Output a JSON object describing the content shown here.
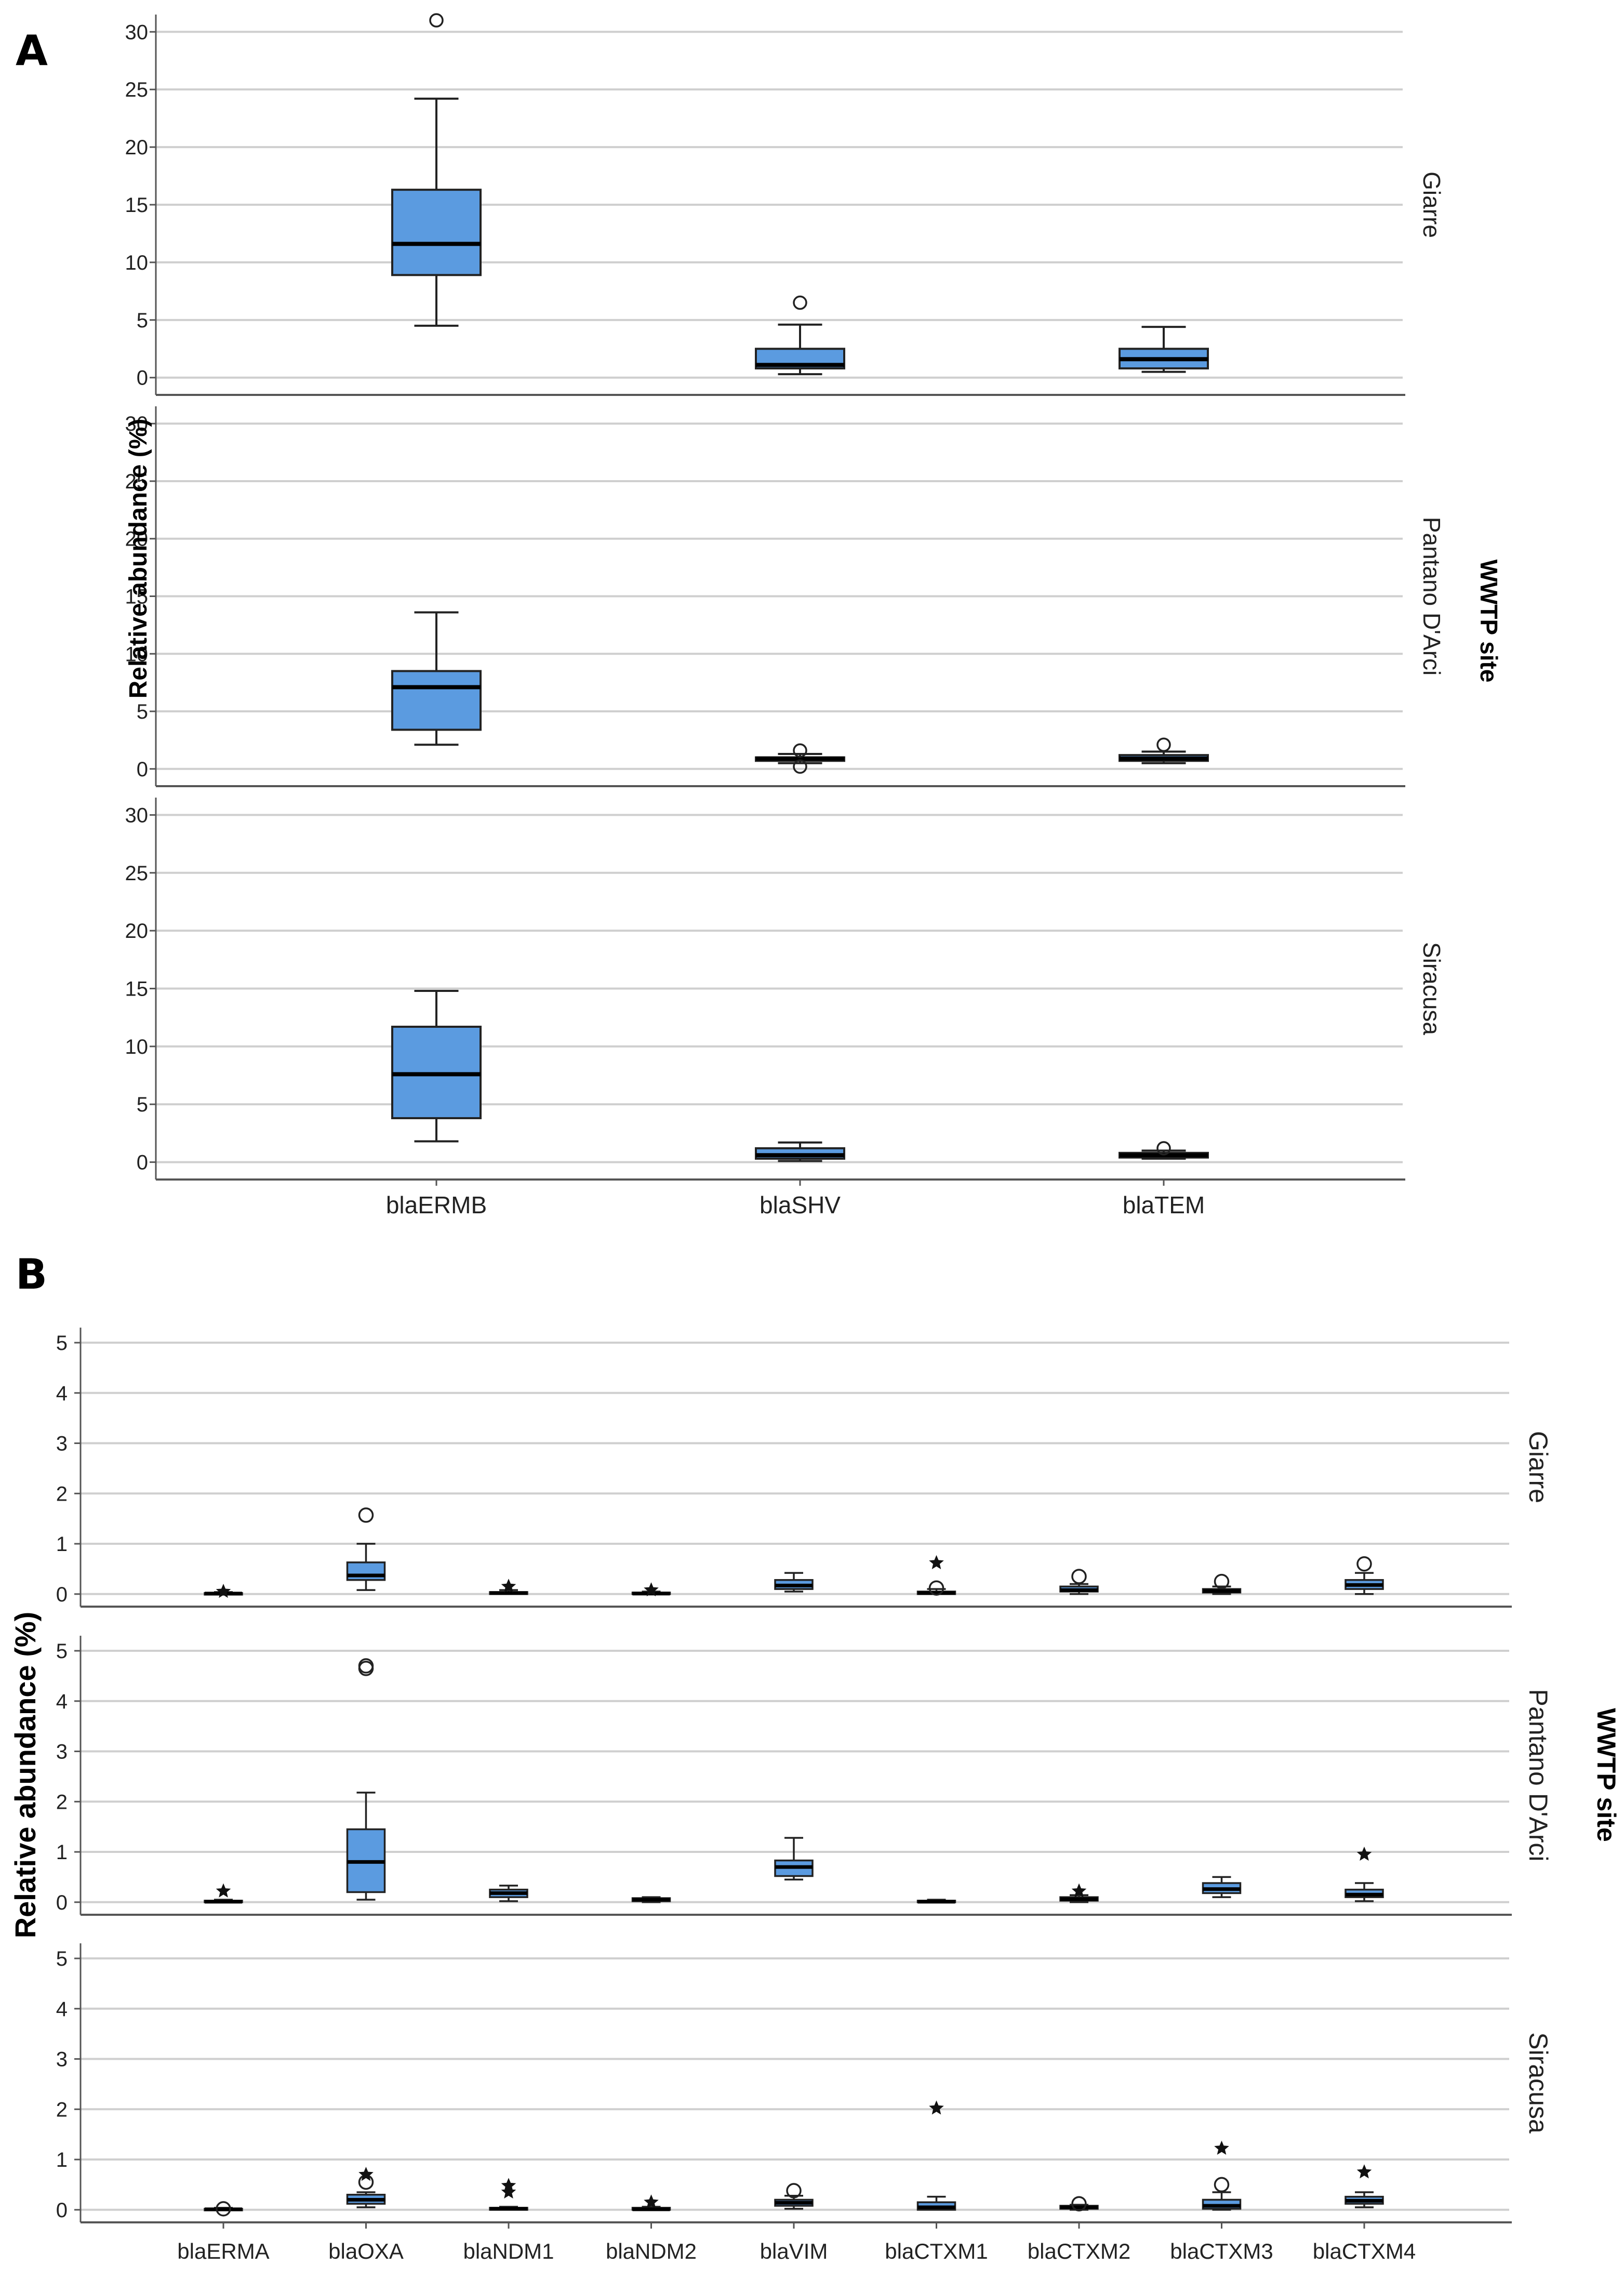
{
  "colors": {
    "box": "#5b9be0",
    "grid": "#cfcfcf",
    "axis": "#555555",
    "stroke": "#222222"
  },
  "chart_data": [
    {
      "panel": "A",
      "type": "boxplot",
      "ylabel": "Relative abundance (%)",
      "facet_title": "WWTP site",
      "categories": [
        "blaERMB",
        "blaSHV",
        "blaTEM"
      ],
      "yticks": [
        0,
        5,
        10,
        15,
        20,
        25,
        30
      ],
      "ylim": [
        -1.5,
        31.5
      ],
      "facets": [
        {
          "site": "Giarre",
          "boxes": [
            {
              "category": "blaERMB",
              "min": 4.5,
              "q1": 8.9,
              "median": 11.6,
              "q3": 16.3,
              "max": 24.2,
              "outliers": [
                31
              ],
              "extremes": []
            },
            {
              "category": "blaSHV",
              "min": 0.3,
              "q1": 0.8,
              "median": 1.1,
              "q3": 2.5,
              "max": 4.6,
              "outliers": [
                6.5
              ],
              "extremes": []
            },
            {
              "category": "blaTEM",
              "min": 0.5,
              "q1": 0.8,
              "median": 1.6,
              "q3": 2.5,
              "max": 4.4,
              "outliers": [],
              "extremes": []
            }
          ]
        },
        {
          "site": "Pantano D'Arci",
          "boxes": [
            {
              "category": "blaERMB",
              "min": 2.1,
              "q1": 3.4,
              "median": 7.1,
              "q3": 8.5,
              "max": 13.6,
              "outliers": [],
              "extremes": []
            },
            {
              "category": "blaSHV",
              "min": 0.5,
              "q1": 0.7,
              "median": 0.9,
              "q3": 1.0,
              "max": 1.3,
              "outliers": [
                1.6,
                0.2
              ],
              "extremes": []
            },
            {
              "category": "blaTEM",
              "min": 0.5,
              "q1": 0.7,
              "median": 0.9,
              "q3": 1.2,
              "max": 1.5,
              "outliers": [
                2.1
              ],
              "extremes": []
            }
          ]
        },
        {
          "site": "Siracusa",
          "boxes": [
            {
              "category": "blaERMB",
              "min": 1.8,
              "q1": 3.8,
              "median": 7.6,
              "q3": 11.7,
              "max": 14.8,
              "outliers": [],
              "extremes": []
            },
            {
              "category": "blaSHV",
              "min": 0.1,
              "q1": 0.3,
              "median": 0.6,
              "q3": 1.2,
              "max": 1.7,
              "outliers": [],
              "extremes": []
            },
            {
              "category": "blaTEM",
              "min": 0.3,
              "q1": 0.4,
              "median": 0.6,
              "q3": 0.8,
              "max": 1.0,
              "outliers": [
                1.2
              ],
              "extremes": []
            }
          ]
        }
      ]
    },
    {
      "panel": "B",
      "type": "boxplot",
      "ylabel": "Relative abundance (%)",
      "facet_title": "WWTP site",
      "categories": [
        "blaERMA",
        "blaOXA",
        "blaNDM1",
        "blaNDM2",
        "blaVIM",
        "blaCTXM1",
        "blaCTXM2",
        "blaCTXM3",
        "blaCTXM4"
      ],
      "yticks": [
        0,
        1,
        2,
        3,
        4,
        5
      ],
      "ylim": [
        -0.25,
        5.3
      ],
      "facets": [
        {
          "site": "Giarre",
          "boxes": [
            {
              "category": "blaERMA",
              "min": 0.0,
              "q1": 0.0,
              "median": 0.01,
              "q3": 0.02,
              "max": 0.04,
              "outliers": [],
              "extremes": [
                0.05
              ]
            },
            {
              "category": "blaOXA",
              "min": 0.08,
              "q1": 0.28,
              "median": 0.37,
              "q3": 0.63,
              "max": 1.0,
              "outliers": [
                1.57
              ],
              "extremes": []
            },
            {
              "category": "blaNDM1",
              "min": 0.0,
              "q1": 0.0,
              "median": 0.02,
              "q3": 0.04,
              "max": 0.08,
              "outliers": [],
              "extremes": [
                0.15
              ]
            },
            {
              "category": "blaNDM2",
              "min": 0.0,
              "q1": 0.0,
              "median": 0.01,
              "q3": 0.03,
              "max": 0.05,
              "outliers": [],
              "extremes": [
                0.08
              ]
            },
            {
              "category": "blaVIM",
              "min": 0.05,
              "q1": 0.1,
              "median": 0.17,
              "q3": 0.28,
              "max": 0.42,
              "outliers": [],
              "extremes": []
            },
            {
              "category": "blaCTXM1",
              "min": 0.0,
              "q1": 0.0,
              "median": 0.02,
              "q3": 0.05,
              "max": 0.1,
              "outliers": [
                0.12
              ],
              "extremes": [
                0.62
              ]
            },
            {
              "category": "blaCTXM2",
              "min": 0.0,
              "q1": 0.05,
              "median": 0.08,
              "q3": 0.15,
              "max": 0.2,
              "outliers": [
                0.35
              ],
              "extremes": []
            },
            {
              "category": "blaCTXM3",
              "min": 0.0,
              "q1": 0.03,
              "median": 0.06,
              "q3": 0.1,
              "max": 0.15,
              "outliers": [
                0.25
              ],
              "extremes": []
            },
            {
              "category": "blaCTXM4",
              "min": 0.0,
              "q1": 0.1,
              "median": 0.18,
              "q3": 0.28,
              "max": 0.42,
              "outliers": [
                0.6
              ],
              "extremes": []
            }
          ]
        },
        {
          "site": "Pantano D'Arci",
          "boxes": [
            {
              "category": "blaERMA",
              "min": 0.0,
              "q1": 0.0,
              "median": 0.01,
              "q3": 0.03,
              "max": 0.05,
              "outliers": [],
              "extremes": [
                0.22
              ]
            },
            {
              "category": "blaOXA",
              "min": 0.05,
              "q1": 0.2,
              "median": 0.8,
              "q3": 1.45,
              "max": 2.18,
              "outliers": [
                4.65,
                4.7
              ],
              "extremes": []
            },
            {
              "category": "blaNDM1",
              "min": 0.02,
              "q1": 0.1,
              "median": 0.18,
              "q3": 0.25,
              "max": 0.33,
              "outliers": [],
              "extremes": []
            },
            {
              "category": "blaNDM2",
              "min": 0.0,
              "q1": 0.02,
              "median": 0.05,
              "q3": 0.08,
              "max": 0.1,
              "outliers": [],
              "extremes": []
            },
            {
              "category": "blaVIM",
              "min": 0.45,
              "q1": 0.52,
              "median": 0.7,
              "q3": 0.83,
              "max": 1.28,
              "outliers": [],
              "extremes": []
            },
            {
              "category": "blaCTXM1",
              "min": 0.0,
              "q1": 0.0,
              "median": 0.01,
              "q3": 0.03,
              "max": 0.05,
              "outliers": [],
              "extremes": []
            },
            {
              "category": "blaCTXM2",
              "min": 0.0,
              "q1": 0.03,
              "median": 0.06,
              "q3": 0.1,
              "max": 0.14,
              "outliers": [],
              "extremes": [
                0.22
              ]
            },
            {
              "category": "blaCTXM3",
              "min": 0.1,
              "q1": 0.18,
              "median": 0.26,
              "q3": 0.38,
              "max": 0.5,
              "outliers": [],
              "extremes": []
            },
            {
              "category": "blaCTXM4",
              "min": 0.02,
              "q1": 0.1,
              "median": 0.15,
              "q3": 0.25,
              "max": 0.38,
              "outliers": [],
              "extremes": [
                0.95
              ]
            }
          ]
        },
        {
          "site": "Siracusa",
          "boxes": [
            {
              "category": "blaERMA",
              "min": 0.0,
              "q1": 0.0,
              "median": 0.01,
              "q3": 0.02,
              "max": 0.04,
              "outliers": [
                0.02
              ],
              "extremes": []
            },
            {
              "category": "blaOXA",
              "min": 0.05,
              "q1": 0.12,
              "median": 0.2,
              "q3": 0.3,
              "max": 0.35,
              "outliers": [
                0.55
              ],
              "extremes": [
                0.7
              ]
            },
            {
              "category": "blaNDM1",
              "min": 0.0,
              "q1": 0.0,
              "median": 0.02,
              "q3": 0.04,
              "max": 0.06,
              "outliers": [],
              "extremes": [
                0.35,
                0.48
              ]
            },
            {
              "category": "blaNDM2",
              "min": 0.0,
              "q1": 0.0,
              "median": 0.01,
              "q3": 0.04,
              "max": 0.06,
              "outliers": [],
              "extremes": [
                0.15
              ]
            },
            {
              "category": "blaVIM",
              "min": 0.02,
              "q1": 0.08,
              "median": 0.14,
              "q3": 0.2,
              "max": 0.28,
              "outliers": [
                0.38
              ],
              "extremes": []
            },
            {
              "category": "blaCTXM1",
              "min": 0.0,
              "q1": 0.0,
              "median": 0.05,
              "q3": 0.15,
              "max": 0.26,
              "outliers": [],
              "extremes": [
                2.02
              ]
            },
            {
              "category": "blaCTXM2",
              "min": 0.0,
              "q1": 0.02,
              "median": 0.05,
              "q3": 0.08,
              "max": 0.1,
              "outliers": [
                0.12
              ],
              "extremes": []
            },
            {
              "category": "blaCTXM3",
              "min": 0.0,
              "q1": 0.02,
              "median": 0.08,
              "q3": 0.2,
              "max": 0.35,
              "outliers": [
                0.5
              ],
              "extremes": [
                1.22
              ]
            },
            {
              "category": "blaCTXM4",
              "min": 0.05,
              "q1": 0.12,
              "median": 0.18,
              "q3": 0.26,
              "max": 0.35,
              "outliers": [],
              "extremes": [
                0.75
              ]
            }
          ]
        }
      ]
    }
  ]
}
